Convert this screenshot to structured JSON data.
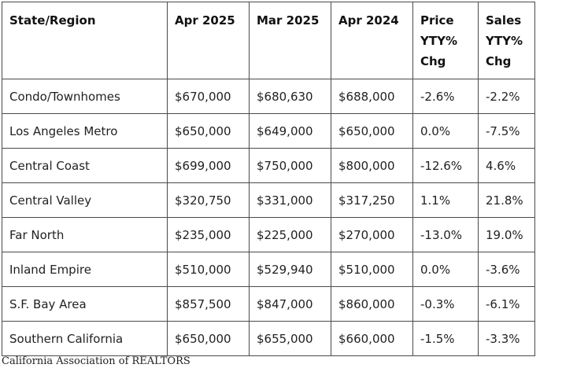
{
  "headers": {
    "region": "State/Region",
    "apr_2025": "Apr 2025",
    "mar_2025": "Mar 2025",
    "apr_2024": "Apr 2024",
    "price_chg": [
      "Price",
      "YTY%",
      "Chg"
    ],
    "sales_chg": [
      "Sales",
      "YTY%",
      "Chg"
    ]
  },
  "rows": [
    {
      "region": "Condo/Townhomes",
      "apr_2025": "$670,000",
      "mar_2025": "$680,630",
      "apr_2024": "$688,000",
      "price_chg": "-2.6%",
      "sales_chg": "-2.2%"
    },
    {
      "region": "Los Angeles Metro",
      "apr_2025": "$650,000",
      "mar_2025": "$649,000",
      "apr_2024": "$650,000",
      "price_chg": "0.0%",
      "sales_chg": "-7.5%"
    },
    {
      "region": "Central Coast",
      "apr_2025": "$699,000",
      "mar_2025": "$750,000",
      "apr_2024": "$800,000",
      "price_chg": "-12.6%",
      "sales_chg": "4.6%"
    },
    {
      "region": "Central Valley",
      "apr_2025": "$320,750",
      "mar_2025": "$331,000",
      "apr_2024": "$317,250",
      "price_chg": "1.1%",
      "sales_chg": "21.8%"
    },
    {
      "region": "Far North",
      "apr_2025": "$235,000",
      "mar_2025": "$225,000",
      "apr_2024": "$270,000",
      "price_chg": "-13.0%",
      "sales_chg": "19.0%"
    },
    {
      "region": "Inland Empire",
      "apr_2025": "$510,000",
      "mar_2025": "$529,940",
      "apr_2024": "$510,000",
      "price_chg": "0.0%",
      "sales_chg": "-3.6%"
    },
    {
      "region": "S.F. Bay Area",
      "apr_2025": "$857,500",
      "mar_2025": "$847,000",
      "apr_2024": "$860,000",
      "price_chg": "-0.3%",
      "sales_chg": "-6.1%"
    },
    {
      "region": "Southern California",
      "apr_2025": "$650,000",
      "mar_2025": "$655,000",
      "apr_2024": "$660,000",
      "price_chg": "-1.5%",
      "sales_chg": "-3.3%"
    }
  ],
  "source": "California Association of REALTORS"
}
